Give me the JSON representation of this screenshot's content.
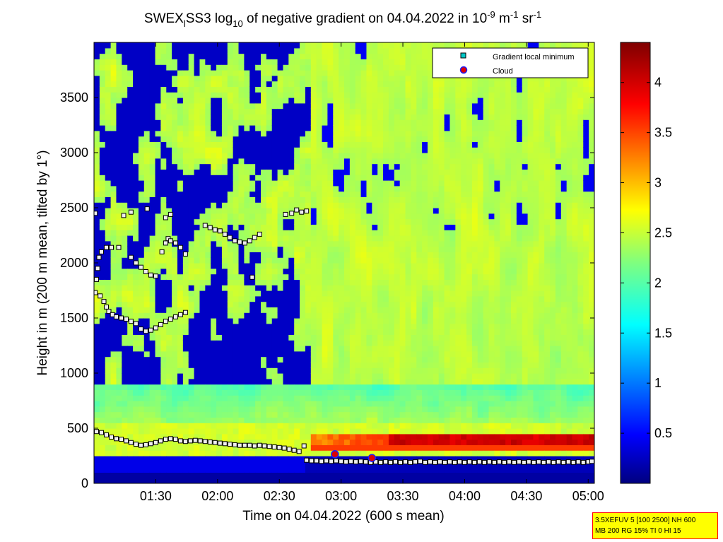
{
  "chart_data": {
    "type": "heatmap",
    "title_parts": {
      "a": "SWEX",
      "a_sub": "l",
      "b": "SS3 log",
      "b_sub": "10",
      "c": " of negative gradient on 04.04.2022 in 10",
      "c_sup": "-9",
      "d": " m",
      "d_sup": "-1",
      "e": " sr",
      "e_sup": "-1"
    },
    "xlabel": "Time on 04.04.2022 (600 s mean)",
    "ylabel": "Height in m (200 m mean, tilted by 1°)",
    "x_range_hours": [
      1.0,
      5.05
    ],
    "x_ticks": [
      {
        "value": 1.5,
        "label": "01:30"
      },
      {
        "value": 2.0,
        "label": "02:00"
      },
      {
        "value": 2.5,
        "label": "02:30"
      },
      {
        "value": 3.0,
        "label": "03:00"
      },
      {
        "value": 3.5,
        "label": "03:30"
      },
      {
        "value": 4.0,
        "label": "04:00"
      },
      {
        "value": 4.5,
        "label": "04:30"
      },
      {
        "value": 5.0,
        "label": "05:00"
      }
    ],
    "ylim": [
      0,
      4000
    ],
    "y_ticks": [
      {
        "value": 0,
        "label": "0"
      },
      {
        "value": 500,
        "label": "500"
      },
      {
        "value": 1000,
        "label": "1000"
      },
      {
        "value": 1500,
        "label": "1500"
      },
      {
        "value": 2000,
        "label": "2000"
      },
      {
        "value": 2500,
        "label": "2500"
      },
      {
        "value": 3000,
        "label": "3000"
      },
      {
        "value": 3500,
        "label": "3500"
      }
    ],
    "colorbar": {
      "colormap": "jet",
      "range": [
        0,
        4.4
      ],
      "ticks": [
        {
          "value": 0.5,
          "label": "0.5"
        },
        {
          "value": 1,
          "label": "1"
        },
        {
          "value": 1.5,
          "label": "1.5"
        },
        {
          "value": 2,
          "label": "2"
        },
        {
          "value": 2.5,
          "label": "2.5"
        },
        {
          "value": 3,
          "label": "3"
        },
        {
          "value": 3.5,
          "label": "3.5"
        },
        {
          "value": 4,
          "label": "4"
        }
      ]
    },
    "legend": {
      "placement": "top-right",
      "entries": [
        {
          "label": "Gradient local minimum",
          "marker": "square",
          "color": "#00c8c8"
        },
        {
          "label": "Cloud",
          "marker": "circle",
          "color": "#dd0000",
          "edge": "#1a1aff"
        }
      ]
    },
    "series": [
      {
        "name": "Gradient local minimum",
        "marker": "square",
        "points": [
          [
            1.02,
            470
          ],
          [
            1.06,
            460
          ],
          [
            1.1,
            440
          ],
          [
            1.14,
            420
          ],
          [
            1.18,
            405
          ],
          [
            1.22,
            400
          ],
          [
            1.26,
            385
          ],
          [
            1.3,
            370
          ],
          [
            1.34,
            355
          ],
          [
            1.38,
            345
          ],
          [
            1.42,
            350
          ],
          [
            1.46,
            360
          ],
          [
            1.5,
            370
          ],
          [
            1.54,
            385
          ],
          [
            1.58,
            400
          ],
          [
            1.62,
            405
          ],
          [
            1.66,
            400
          ],
          [
            1.7,
            385
          ],
          [
            1.74,
            380
          ],
          [
            1.78,
            385
          ],
          [
            1.82,
            390
          ],
          [
            1.86,
            385
          ],
          [
            1.9,
            380
          ],
          [
            1.94,
            375
          ],
          [
            1.98,
            370
          ],
          [
            2.02,
            365
          ],
          [
            2.06,
            360
          ],
          [
            2.1,
            355
          ],
          [
            2.14,
            350
          ],
          [
            2.18,
            345
          ],
          [
            2.22,
            345
          ],
          [
            2.26,
            345
          ],
          [
            2.3,
            340
          ],
          [
            2.34,
            345
          ],
          [
            2.38,
            340
          ],
          [
            2.42,
            335
          ],
          [
            2.46,
            330
          ],
          [
            2.5,
            325
          ],
          [
            2.54,
            320
          ],
          [
            2.58,
            310
          ],
          [
            2.62,
            300
          ],
          [
            2.66,
            290
          ],
          [
            2.7,
            340
          ],
          [
            2.72,
            210
          ],
          [
            2.76,
            205
          ],
          [
            2.8,
            205
          ],
          [
            2.84,
            200
          ],
          [
            2.88,
            205
          ],
          [
            2.92,
            200
          ],
          [
            2.96,
            205
          ],
          [
            3.0,
            200
          ],
          [
            3.04,
            195
          ],
          [
            3.08,
            200
          ],
          [
            3.12,
            195
          ],
          [
            3.16,
            200
          ],
          [
            3.2,
            195
          ],
          [
            3.24,
            190
          ],
          [
            3.28,
            195
          ],
          [
            3.32,
            190
          ],
          [
            3.36,
            195
          ],
          [
            3.4,
            190
          ],
          [
            3.44,
            195
          ],
          [
            3.48,
            190
          ],
          [
            3.52,
            195
          ],
          [
            3.56,
            190
          ],
          [
            3.6,
            195
          ],
          [
            3.64,
            200
          ],
          [
            3.68,
            190
          ],
          [
            3.72,
            195
          ],
          [
            3.76,
            190
          ],
          [
            3.8,
            195
          ],
          [
            3.84,
            190
          ],
          [
            3.88,
            195
          ],
          [
            3.92,
            190
          ],
          [
            3.96,
            195
          ],
          [
            4.0,
            190
          ],
          [
            4.04,
            195
          ],
          [
            4.08,
            190
          ],
          [
            4.12,
            195
          ],
          [
            4.16,
            190
          ],
          [
            4.2,
            195
          ],
          [
            4.24,
            190
          ],
          [
            4.28,
            195
          ],
          [
            4.32,
            190
          ],
          [
            4.36,
            195
          ],
          [
            4.4,
            190
          ],
          [
            4.44,
            195
          ],
          [
            4.48,
            190
          ],
          [
            4.52,
            195
          ],
          [
            4.56,
            190
          ],
          [
            4.6,
            195
          ],
          [
            4.64,
            190
          ],
          [
            4.68,
            195
          ],
          [
            4.72,
            190
          ],
          [
            4.76,
            195
          ],
          [
            4.8,
            190
          ],
          [
            4.84,
            195
          ],
          [
            4.88,
            190
          ],
          [
            4.92,
            195
          ],
          [
            4.96,
            190
          ],
          [
            5.0,
            195
          ],
          [
            5.03,
            200
          ],
          [
            1.01,
            1730
          ],
          [
            1.02,
            1850
          ],
          [
            1.03,
            1950
          ],
          [
            1.04,
            2050
          ],
          [
            1.06,
            2100
          ],
          [
            1.1,
            2140
          ],
          [
            1.14,
            2140
          ],
          [
            1.2,
            2140
          ],
          [
            1.05,
            1700
          ],
          [
            1.08,
            1650
          ],
          [
            1.1,
            1600
          ],
          [
            1.12,
            1560
          ],
          [
            1.15,
            1530
          ],
          [
            1.18,
            1510
          ],
          [
            1.22,
            1500
          ],
          [
            1.26,
            1490
          ],
          [
            1.3,
            1470
          ],
          [
            1.34,
            1450
          ],
          [
            1.38,
            1400
          ],
          [
            1.42,
            1380
          ],
          [
            1.46,
            1390
          ],
          [
            1.5,
            1410
          ],
          [
            1.54,
            1440
          ],
          [
            1.58,
            1470
          ],
          [
            1.62,
            1490
          ],
          [
            1.66,
            1510
          ],
          [
            1.7,
            1530
          ],
          [
            1.74,
            1550
          ],
          [
            1.01,
            2450
          ],
          [
            1.24,
            2430
          ],
          [
            1.3,
            2460
          ],
          [
            1.43,
            2490
          ],
          [
            1.58,
            2410
          ],
          [
            1.62,
            2440
          ],
          [
            1.3,
            2050
          ],
          [
            1.34,
            2000
          ],
          [
            1.38,
            1960
          ],
          [
            1.42,
            1920
          ],
          [
            1.46,
            1890
          ],
          [
            1.5,
            1880
          ],
          [
            1.55,
            2100
          ],
          [
            1.6,
            2220
          ],
          [
            1.58,
            2180
          ],
          [
            1.62,
            2200
          ],
          [
            1.66,
            2180
          ],
          [
            1.7,
            2140
          ],
          [
            1.74,
            2080
          ],
          [
            1.9,
            2340
          ],
          [
            1.94,
            2320
          ],
          [
            1.98,
            2300
          ],
          [
            2.02,
            2290
          ],
          [
            2.06,
            2260
          ],
          [
            2.1,
            2230
          ],
          [
            2.14,
            2200
          ],
          [
            2.18,
            2190
          ],
          [
            2.22,
            2180
          ],
          [
            2.26,
            2200
          ],
          [
            2.3,
            2230
          ],
          [
            2.34,
            2260
          ],
          [
            2.28,
            1870
          ],
          [
            2.55,
            2440
          ],
          [
            2.6,
            2450
          ],
          [
            2.64,
            2480
          ],
          [
            2.68,
            2460
          ],
          [
            2.72,
            2470
          ]
        ]
      },
      {
        "name": "Cloud",
        "marker": "circle",
        "points": [
          [
            2.95,
            265
          ],
          [
            3.25,
            230
          ]
        ]
      }
    ],
    "heatmap_features": [
      {
        "region": "noise floor below boundary layer",
        "height_range": [
          0,
          250
        ],
        "value": 0.2
      },
      {
        "region": "boundary layer top band",
        "height_range": [
          250,
          550
        ],
        "value": 2.6
      },
      {
        "region": "strong gradient after 02:50",
        "x_range": [
          2.75,
          5.05
        ],
        "height_range": [
          300,
          480
        ],
        "value": 4.2
      },
      {
        "region": "cloud layer structures before 03:00",
        "x_range": [
          1.0,
          3.0
        ],
        "height_range": [
          1000,
          3900
        ],
        "value": 1.0
      },
      {
        "region": "uniform background after 03:00",
        "x_range": [
          3.0,
          5.05
        ],
        "height_range": [
          500,
          3900
        ],
        "value": 2.4
      }
    ]
  },
  "params_box": {
    "line1": "3.5XEFUV 5 [100 2500] NH 600",
    "line2": "MB 200 RG 15% TI 0 HI 15"
  }
}
